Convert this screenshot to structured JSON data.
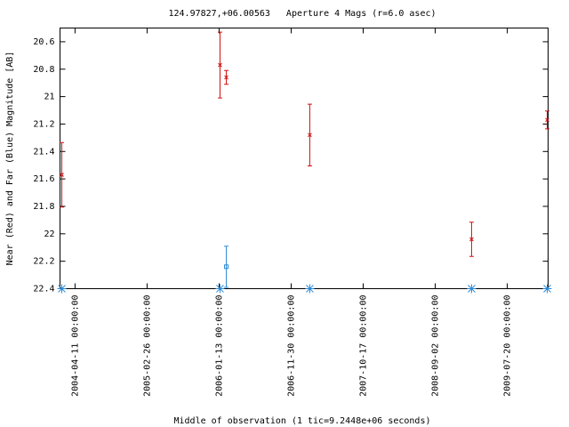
{
  "chart_data": {
    "type": "errorbar",
    "title": "124.97827,+06.00563   Aperture 4 Mags (r=6.0 asec)",
    "xlabel": "Middle of observation (1 tic=9.2448e+06 seconds)",
    "ylabel": "Near (Red) and Far (Blue) Magnitude [AB]",
    "x": [
      "2004-02-12",
      "2006-01-17",
      "2006-02-14",
      "2007-02-21",
      "2009-02-11",
      "2010-01-14"
    ],
    "series": [
      {
        "color": "#d01010",
        "marker": "x",
        "values": [
          21.57,
          20.77,
          20.86,
          21.28,
          22.04,
          21.17
        ],
        "errors": [
          0.235,
          0.24,
          0.05,
          0.225,
          0.125,
          0.065
        ]
      },
      {
        "color": "#2b8ad6",
        "marker": "square",
        "values": [
          null,
          null,
          22.24,
          null,
          null,
          null
        ],
        "errors": [
          null,
          null,
          0.15,
          null,
          null,
          null
        ]
      },
      {
        "color": "#2b8ad6",
        "marker": "asterisk",
        "values": [
          22.4,
          22.4,
          null,
          22.4,
          22.4,
          22.4
        ]
      }
    ],
    "xlim": [
      "2004-02-04",
      "2010-01-18"
    ],
    "xticks": [
      "2004-04-11 00:00:00",
      "2005-02-26 00:00:00",
      "2006-01-13 00:00:00",
      "2006-11-30 00:00:00",
      "2007-10-17 00:00:00",
      "2008-09-02 00:00:00",
      "2009-07-20 00:00:00"
    ],
    "ylim": [
      22.4,
      20.5
    ],
    "yticks": [
      20.6,
      20.8,
      21,
      21.2,
      21.4,
      21.6,
      21.8,
      22,
      22.2,
      22.4
    ]
  }
}
